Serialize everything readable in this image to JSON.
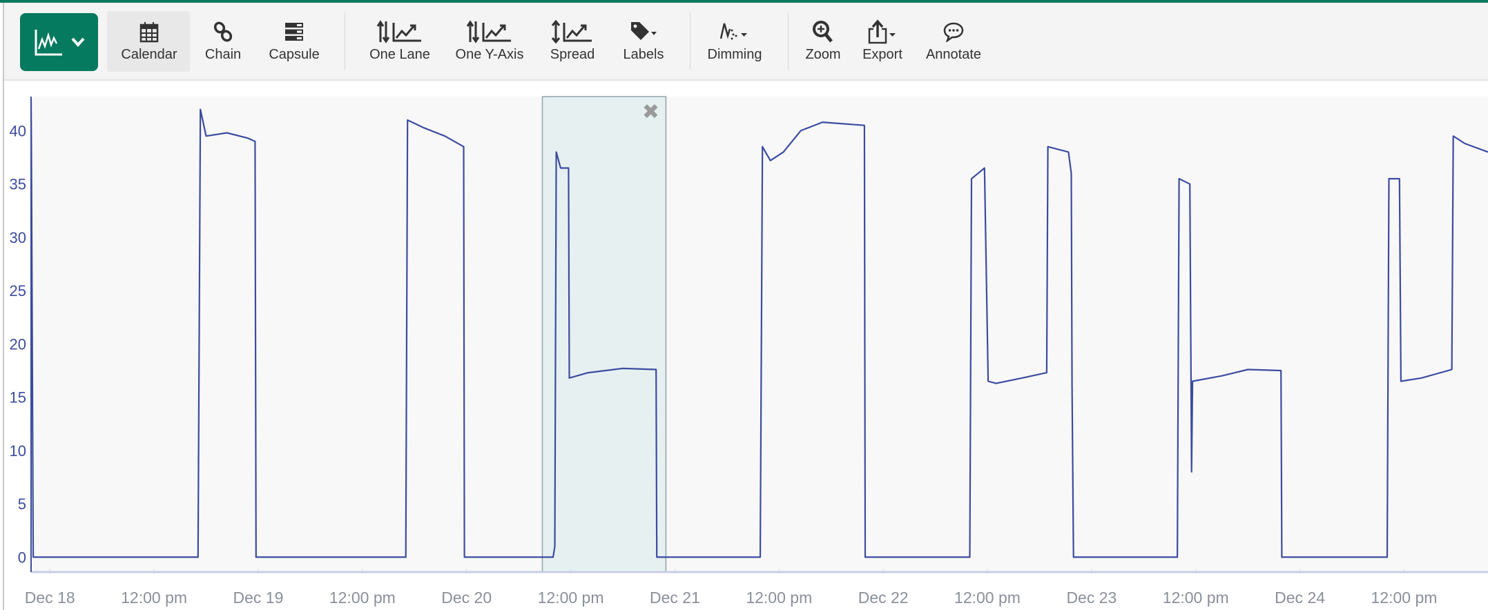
{
  "toolbar": {
    "main_button": {
      "icon": "line-chart-icon",
      "dropdown": "chevron-down-icon"
    },
    "items": [
      {
        "label": "Calendar",
        "icon": "calendar-icon",
        "active": true
      },
      {
        "label": "Chain",
        "icon": "chain-link-icon"
      },
      {
        "label": "Capsule",
        "icon": "capsule-stack-icon"
      },
      {
        "label": "One Lane",
        "icon": "one-lane-icon"
      },
      {
        "label": "One Y-Axis",
        "icon": "one-y-axis-icon"
      },
      {
        "label": "Spread",
        "icon": "spread-icon"
      },
      {
        "label": "Labels",
        "icon": "tag-icon"
      },
      {
        "label": "Dimming",
        "icon": "dimming-icon"
      },
      {
        "label": "Zoom",
        "icon": "zoom-in-icon"
      },
      {
        "label": "Export",
        "icon": "export-icon"
      },
      {
        "label": "Annotate",
        "icon": "comment-icon"
      }
    ],
    "accent": "#067a5e"
  },
  "chart_data": {
    "type": "line",
    "xlabel": "",
    "ylabel": "",
    "x_range": [
      "Dec 17 21:50",
      "Dec 24 21:40"
    ],
    "ylim": [
      -1.4,
      43.2
    ],
    "y_ticks": [
      0,
      5,
      10,
      15,
      20,
      25,
      30,
      35,
      40
    ],
    "x_ticks": [
      "Dec 18",
      "12:00 pm",
      "Dec 19",
      "12:00 pm",
      "Dec 20",
      "12:00 pm",
      "Dec 21",
      "12:00 pm",
      "Dec 22",
      "12:00 pm",
      "Dec 23",
      "12:00 pm",
      "Dec 24",
      "12:00 pm"
    ],
    "x_tick_times": [
      "Dec 18 00:00",
      "Dec 18 12:00",
      "Dec 19 00:00",
      "Dec 19 12:00",
      "Dec 20 00:00",
      "Dec 20 12:00",
      "Dec 21 00:00",
      "Dec 21 12:00",
      "Dec 22 00:00",
      "Dec 22 12:00",
      "Dec 23 00:00",
      "Dec 23 12:00",
      "Dec 24 00:00",
      "Dec 24 12:00"
    ],
    "line_color": "#3b4ba0",
    "grid": false,
    "selected_capsule": {
      "start": "Dec 20 08:44",
      "end": "Dec 20 22:58",
      "close_icon": "close-x-icon"
    },
    "series": [
      {
        "points": [
          [
            "Dec 17 21:50",
            43
          ],
          [
            "Dec 17 21:52",
            39
          ],
          [
            "Dec 17 22:05",
            0
          ],
          [
            "Dec 18 17:04",
            0
          ],
          [
            "Dec 18 17:20",
            42
          ],
          [
            "Dec 18 18:00",
            39.5
          ],
          [
            "Dec 18 20:24",
            39.8
          ],
          [
            "Dec 18 22:48",
            39.3
          ],
          [
            "Dec 18 23:38",
            39
          ],
          [
            "Dec 18 23:45",
            0
          ],
          [
            "Dec 19 17:00",
            0
          ],
          [
            "Dec 19 17:12",
            41
          ],
          [
            "Dec 19 19:00",
            40.3
          ],
          [
            "Dec 19 21:30",
            39.5
          ],
          [
            "Dec 19 23:40",
            38.5
          ],
          [
            "Dec 19 23:45",
            0
          ],
          [
            "Dec 20 09:58",
            0
          ],
          [
            "Dec 20 10:10",
            1
          ],
          [
            "Dec 20 10:20",
            38
          ],
          [
            "Dec 20 10:50",
            36.5
          ],
          [
            "Dec 20 11:45",
            36.5
          ],
          [
            "Dec 20 11:50",
            16.8
          ],
          [
            "Dec 20 14:00",
            17.3
          ],
          [
            "Dec 20 18:00",
            17.7
          ],
          [
            "Dec 20 21:50",
            17.6
          ],
          [
            "Dec 20 21:55",
            0
          ],
          [
            "Dec 21 09:50",
            0
          ],
          [
            "Dec 21 10:05",
            38.5
          ],
          [
            "Dec 21 11:00",
            37.2
          ],
          [
            "Dec 21 12:30",
            38
          ],
          [
            "Dec 21 14:30",
            40
          ],
          [
            "Dec 21 17:00",
            40.8
          ],
          [
            "Dec 21 21:50",
            40.5
          ],
          [
            "Dec 21 21:55",
            0
          ],
          [
            "Dec 22 09:58",
            0
          ],
          [
            "Dec 22 10:10",
            35.5
          ],
          [
            "Dec 22 11:40",
            36.5
          ],
          [
            "Dec 22 12:05",
            16.5
          ],
          [
            "Dec 22 13:00",
            16.3
          ],
          [
            "Dec 22 16:00",
            16.8
          ],
          [
            "Dec 22 18:50",
            17.3
          ],
          [
            "Dec 22 18:58",
            38.5
          ],
          [
            "Dec 22 21:20",
            38
          ],
          [
            "Dec 22 21:40",
            36
          ],
          [
            "Dec 22 21:45",
            16
          ],
          [
            "Dec 22 21:55",
            0
          ],
          [
            "Dec 23 09:53",
            0
          ],
          [
            "Dec 23 10:05",
            35.5
          ],
          [
            "Dec 23 11:19",
            35
          ],
          [
            "Dec 23 11:31",
            8
          ],
          [
            "Dec 23 11:38",
            16.5
          ],
          [
            "Dec 23 15:00",
            17
          ],
          [
            "Dec 23 18:00",
            17.6
          ],
          [
            "Dec 23 21:49",
            17.5
          ],
          [
            "Dec 23 21:55",
            0
          ],
          [
            "Dec 24 10:03",
            0
          ],
          [
            "Dec 24 10:15",
            35.5
          ],
          [
            "Dec 24 11:28",
            35.5
          ],
          [
            "Dec 24 11:38",
            16.5
          ],
          [
            "Dec 24 14:00",
            16.8
          ],
          [
            "Dec 24 17:30",
            17.6
          ],
          [
            "Dec 24 17:40",
            39.5
          ],
          [
            "Dec 24 19:00",
            38.8
          ],
          [
            "Dec 24 21:40",
            38
          ]
        ]
      }
    ]
  }
}
